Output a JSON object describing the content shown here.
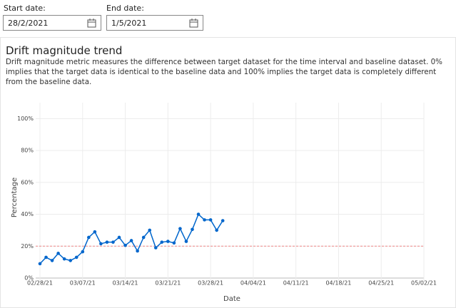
{
  "filters": {
    "start_label": "Start date:",
    "start_value": "28/2/2021",
    "end_label": "End date:",
    "end_value": "1/5/2021"
  },
  "chart_data": {
    "type": "line",
    "title": "Drift magnitude trend",
    "subtitle": "Drift magnitude metric measures the difference between target dataset for the time interval and baseline dataset. 0% implies that the target data is identical to the baseline data and 100% implies the target data is completely different from the baseline data.",
    "x_label": "Date",
    "y_label": "Percentage",
    "x": [
      "2021-02-28",
      "2021-03-01",
      "2021-03-02",
      "2021-03-03",
      "2021-03-04",
      "2021-03-05",
      "2021-03-06",
      "2021-03-07",
      "2021-03-08",
      "2021-03-09",
      "2021-03-10",
      "2021-03-11",
      "2021-03-12",
      "2021-03-13",
      "2021-03-14",
      "2021-03-15",
      "2021-03-16",
      "2021-03-17",
      "2021-03-18",
      "2021-03-19",
      "2021-03-20",
      "2021-03-21",
      "2021-03-22",
      "2021-03-23",
      "2021-03-24",
      "2021-03-25",
      "2021-03-26",
      "2021-03-27",
      "2021-03-28",
      "2021-03-29",
      "2021-03-30"
    ],
    "series": [
      {
        "color": "#0066cc",
        "values": [
          9,
          13,
          11,
          15.5,
          12,
          11,
          13,
          16.5,
          25.5,
          29,
          21.5,
          22.5,
          22.5,
          25.5,
          20.5,
          23.5,
          17,
          25.5,
          30,
          19,
          22.5,
          23,
          22,
          31,
          23,
          30.5,
          40,
          36.5,
          36.5,
          30,
          36
        ]
      }
    ],
    "threshold": 20,
    "threshold_color": "#e88",
    "xlim": [
      "2021-02-28",
      "2021-05-02"
    ],
    "xticks": [
      {
        "value": "2021-02-28",
        "label": "02/28/21"
      },
      {
        "value": "2021-03-07",
        "label": "03/07/21"
      },
      {
        "value": "2021-03-14",
        "label": "03/14/21"
      },
      {
        "value": "2021-03-21",
        "label": "03/21/21"
      },
      {
        "value": "2021-03-28",
        "label": "03/28/21"
      },
      {
        "value": "2021-04-04",
        "label": "04/04/21"
      },
      {
        "value": "2021-04-11",
        "label": "04/11/21"
      },
      {
        "value": "2021-04-18",
        "label": "04/18/21"
      },
      {
        "value": "2021-04-25",
        "label": "04/25/21"
      },
      {
        "value": "2021-05-02",
        "label": "05/02/21"
      }
    ],
    "ylim": [
      0,
      110
    ],
    "yticks": [
      {
        "value": 0,
        "label": "0%"
      },
      {
        "value": 20,
        "label": "20%"
      },
      {
        "value": 40,
        "label": "40%"
      },
      {
        "value": 60,
        "label": "60%"
      },
      {
        "value": 80,
        "label": "80%"
      },
      {
        "value": 100,
        "label": "100%"
      }
    ],
    "grid": true
  }
}
